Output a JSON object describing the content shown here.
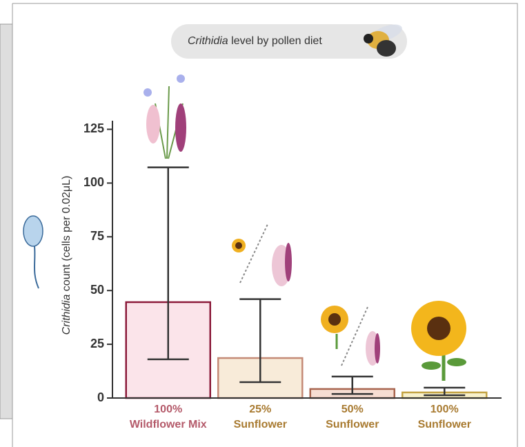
{
  "chart_data": {
    "type": "bar",
    "title": {
      "italic": "Crithidia",
      "text": " level by pollen diet"
    },
    "y_label": {
      "italic": "Crithidia",
      "text": " count (cells per 0.02μL)"
    },
    "categories": [
      [
        "100%",
        "Wildflower Mix"
      ],
      [
        "25%",
        "Sunflower"
      ],
      [
        "50%",
        "Sunflower"
      ],
      [
        "100%",
        "Sunflower"
      ]
    ],
    "series": [
      {
        "values": [
          44.6,
          18.6,
          4.2,
          2.6
        ],
        "lower": [
          18,
          7.4,
          1.9,
          1.3
        ],
        "upper": [
          107.3,
          46,
          10,
          4.8
        ]
      }
    ],
    "colors": [
      "#fbe4ea",
      "#f8ebd9",
      "#f6ddd2",
      "#f8f1cc"
    ],
    "edge_colors": [
      "#8b1a3a",
      "#c48a76",
      "#a8654f",
      "#c4a444"
    ],
    "label_colors": [
      "#b45a6a",
      "#a87a30",
      "#a87a30",
      "#a87a30"
    ],
    "ylim": [
      0,
      129
    ],
    "yticks": [
      0,
      25,
      50,
      75,
      100,
      125
    ]
  }
}
